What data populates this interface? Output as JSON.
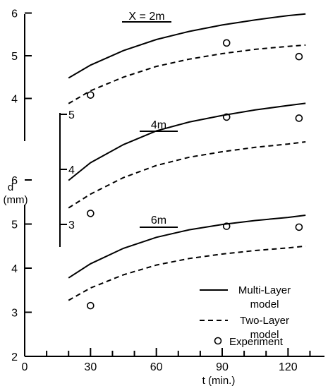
{
  "chart_data": {
    "type": "line",
    "xlabel": "t (min.)",
    "ylabel": "d",
    "ylabel_unit": "(mm)",
    "x_ticks": [
      "0",
      "30",
      "60",
      "90",
      "120"
    ],
    "xlim": [
      0,
      135
    ],
    "grid": false,
    "legend": {
      "placement": "bottom-right",
      "entries": [
        {
          "style": "solid",
          "text": [
            "Multi-Layer",
            "model"
          ]
        },
        {
          "style": "dashed",
          "text": [
            "Two-Layer",
            "model"
          ]
        },
        {
          "style": "circle",
          "text": [
            "Experiment"
          ]
        }
      ]
    },
    "panels": [
      {
        "label": "X = 2m",
        "ylim": [
          3,
          6
        ],
        "y_ticks": [
          "3",
          "4",
          "5",
          "6"
        ],
        "series": [
          {
            "style": "solid",
            "x": [
              20,
              30,
              45,
              60,
              75,
              90,
              105,
              120,
              128
            ],
            "y": [
              4.48,
              4.78,
              5.12,
              5.38,
              5.57,
              5.72,
              5.84,
              5.94,
              5.98
            ]
          },
          {
            "style": "dashed",
            "x": [
              20,
              30,
              45,
              60,
              75,
              90,
              105,
              120,
              128
            ],
            "y": [
              3.88,
              4.18,
              4.5,
              4.75,
              4.92,
              5.05,
              5.15,
              5.22,
              5.25
            ]
          },
          {
            "style": "circle",
            "x": [
              30,
              92,
              125
            ],
            "y": [
              4.08,
              5.3,
              4.98
            ]
          }
        ]
      },
      {
        "label": "4m",
        "ylim": [
          3,
          5
        ],
        "y_ticks": [
          "3",
          "4",
          "5"
        ],
        "series": [
          {
            "style": "solid",
            "x": [
              20,
              30,
              45,
              60,
              75,
              90,
              105,
              120,
              128
            ],
            "y": [
              3.8,
              4.12,
              4.45,
              4.7,
              4.86,
              4.98,
              5.08,
              5.16,
              5.2
            ]
          },
          {
            "style": "dashed",
            "x": [
              20,
              30,
              45,
              60,
              75,
              90,
              105,
              120,
              128
            ],
            "y": [
              3.3,
              3.55,
              3.85,
              4.07,
              4.22,
              4.32,
              4.4,
              4.46,
              4.5
            ]
          },
          {
            "style": "circle",
            "x": [
              30,
              92,
              125
            ],
            "y": [
              3.2,
              4.95,
              4.93
            ]
          }
        ]
      },
      {
        "label": "6m",
        "ylim": [
          2,
          6
        ],
        "y_ticks": [
          "2",
          "3",
          "4",
          "5",
          "6"
        ],
        "series": [
          {
            "style": "solid",
            "x": [
              20,
              30,
              45,
              60,
              75,
              90,
              105,
              120,
              128
            ],
            "y": [
              3.78,
              4.1,
              4.45,
              4.7,
              4.87,
              4.99,
              5.08,
              5.15,
              5.2
            ]
          },
          {
            "style": "dashed",
            "x": [
              20,
              30,
              45,
              60,
              75,
              90,
              105,
              120,
              128
            ],
            "y": [
              3.27,
              3.55,
              3.85,
              4.07,
              4.22,
              4.32,
              4.4,
              4.46,
              4.5
            ]
          },
          {
            "style": "circle",
            "x": [
              30,
              92,
              125
            ],
            "y": [
              3.15,
              4.95,
              4.93
            ]
          }
        ]
      }
    ]
  }
}
